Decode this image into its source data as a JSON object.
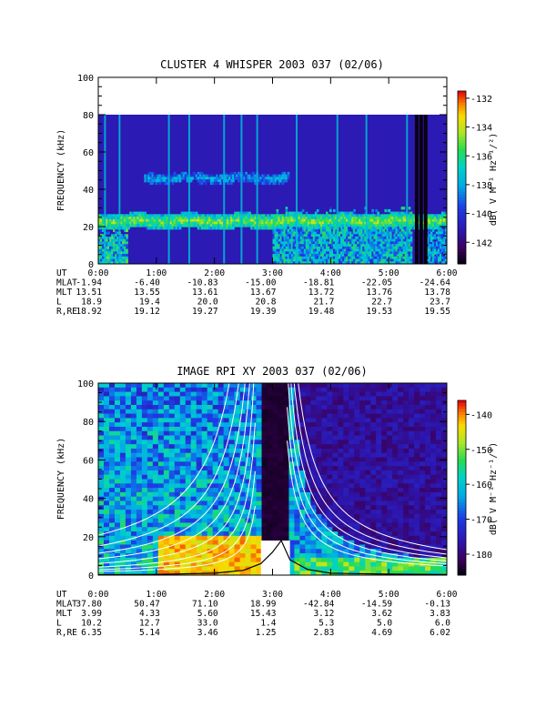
{
  "chart_data": [
    {
      "type": "heatmap",
      "title": "CLUSTER 4 WHISPER 2003 037 (02/06)",
      "ylabel": "FREQUENCY (kHz)",
      "ylim": [
        0,
        100
      ],
      "yticks": [
        "0",
        "20",
        "40",
        "60",
        "80",
        "100"
      ],
      "colorbar": {
        "label": "dB( V M⁻¹ Hz⁻¹/²)",
        "range": [
          -143.5,
          -131.5
        ],
        "ticks": [
          "-132",
          "-134",
          "-136",
          "-138",
          "-140",
          "-142"
        ],
        "tick_values": [
          -132,
          -134,
          -136,
          -138,
          -140,
          -142
        ]
      },
      "data_top_khz": 80,
      "bands": [
        {
          "kind": "emission_band",
          "start_h": 0.0,
          "end_h": 6.0,
          "center_khz": 23,
          "width_khz": 2.5,
          "level": 0.72
        },
        {
          "kind": "emission_band",
          "start_h": 0.8,
          "end_h": 3.3,
          "center_khz": 46,
          "width_khz": 1.8,
          "level": 0.45
        },
        {
          "kind": "broadband_low",
          "start_h": 3.0,
          "end_h": 5.4,
          "top_khz": 28,
          "level": 0.55
        },
        {
          "kind": "broadband_low",
          "start_h": 5.65,
          "end_h": 6.0,
          "top_khz": 26,
          "level": 0.5
        },
        {
          "kind": "broadband_low",
          "start_h": 0.0,
          "end_h": 0.5,
          "top_khz": 20,
          "level": 0.6
        },
        {
          "kind": "data_gap",
          "start_h": 5.45,
          "end_h": 5.68
        }
      ],
      "spikes_h": [
        0.1,
        0.35,
        1.2,
        1.55,
        2.15,
        2.45,
        2.72,
        3.4,
        4.1,
        4.6,
        5.3
      ],
      "ephemeris": {
        "labels": [
          "UT",
          "MLAT",
          "MLT",
          "L",
          "R,RE"
        ],
        "columns": [
          [
            "0:00",
            "-1.94",
            "13.51",
            "18.9",
            "18.92"
          ],
          [
            "1:00",
            "-6.40",
            "13.55",
            "19.4",
            "19.12"
          ],
          [
            "2:00",
            "-10.83",
            "13.61",
            "20.0",
            "19.27"
          ],
          [
            "3:00",
            "-15.00",
            "13.67",
            "20.8",
            "19.39"
          ],
          [
            "4:00",
            "-18.81",
            "13.72",
            "21.7",
            "19.48"
          ],
          [
            "5:00",
            "-22.05",
            "13.76",
            "22.7",
            "19.53"
          ],
          [
            "6:00",
            "-24.64",
            "13.78",
            "23.7",
            "19.55"
          ]
        ]
      }
    },
    {
      "type": "heatmap",
      "title": "IMAGE RPI XY 2003 037 (02/06)",
      "ylabel": "FREQUENCY (kHz)",
      "ylim": [
        0,
        100
      ],
      "yticks": [
        "0",
        "20",
        "40",
        "60",
        "80",
        "100"
      ],
      "colorbar": {
        "label": "dB( V M⁻¹ Hz⁻¹/²)",
        "range": [
          -186,
          -136
        ],
        "ticks": [
          "-140",
          "-150",
          "-160",
          "-170",
          "-180"
        ],
        "tick_values": [
          -140,
          -150,
          -160,
          -170,
          -180
        ]
      },
      "plasma_cutoff_curve": {
        "hours": [
          0.0,
          1.0,
          2.0,
          2.5,
          2.8,
          3.0,
          3.15,
          3.3,
          3.6,
          4.0,
          5.0,
          6.0
        ],
        "khz": [
          0.2,
          0.4,
          1.0,
          2.5,
          6,
          12,
          18,
          8,
          3,
          1.0,
          0.5,
          0.3
        ]
      },
      "white_gap": {
        "start_h": 2.8,
        "end_h": 3.3,
        "top_khz": 18
      },
      "dark_notch": {
        "start_h": 2.85,
        "end_h": 3.25
      },
      "emission_curves_left": {
        "count": 8,
        "k_values": [
          1,
          1.5,
          2.2,
          3.2,
          4.5,
          6,
          8,
          11
        ]
      },
      "emission_curves_right": {
        "count": 6,
        "k_values": [
          1,
          1.25,
          1.55,
          1.9,
          2.3,
          2.8
        ]
      },
      "ephemeris": {
        "labels": [
          "UT",
          "MLAT",
          "MLT",
          "L",
          "R,RE"
        ],
        "columns": [
          [
            "0:00",
            "37.80",
            "3.99",
            "10.2",
            "6.35"
          ],
          [
            "1:00",
            "50.47",
            "4.33",
            "12.7",
            "5.14"
          ],
          [
            "2:00",
            "71.10",
            "5.60",
            "33.0",
            "3.46"
          ],
          [
            "3:00",
            "18.99",
            "15.43",
            "1.4",
            "1.25"
          ],
          [
            "4:00",
            "-42.84",
            "3.12",
            "5.3",
            "2.83"
          ],
          [
            "5:00",
            "-14.59",
            "3.62",
            "5.0",
            "4.69"
          ],
          [
            "6:00",
            "-0.13",
            "3.83",
            "6.0",
            "6.02"
          ]
        ]
      }
    }
  ]
}
